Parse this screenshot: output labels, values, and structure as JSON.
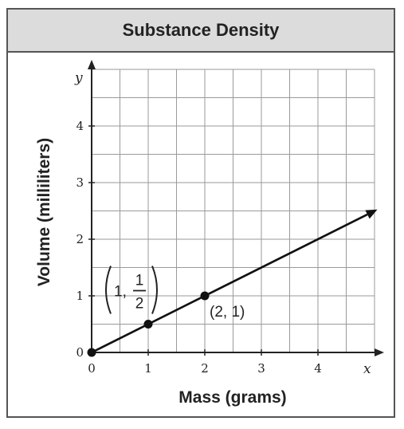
{
  "chart_data": {
    "type": "line",
    "title": "Substance Density",
    "xlabel": "Mass (grams)",
    "ylabel": "Volume (milliliters)",
    "x_var": "x",
    "y_var": "y",
    "xlim": [
      0,
      5
    ],
    "ylim": [
      0,
      5
    ],
    "x_ticks": [
      "0",
      "1",
      "2",
      "3",
      "4"
    ],
    "y_ticks": [
      "0",
      "1",
      "2",
      "3",
      "4"
    ],
    "grid": true,
    "series": [
      {
        "x": [
          0,
          1,
          2,
          5
        ],
        "y": [
          0,
          0.5,
          1,
          2.5
        ]
      }
    ],
    "points": [
      {
        "x": 0,
        "y": 0
      },
      {
        "x": 1,
        "y": 0.5,
        "label_num": "1",
        "label_frac_num": "1",
        "label_frac_den": "2"
      },
      {
        "x": 2,
        "y": 1,
        "label": "(2, 1)"
      }
    ]
  }
}
